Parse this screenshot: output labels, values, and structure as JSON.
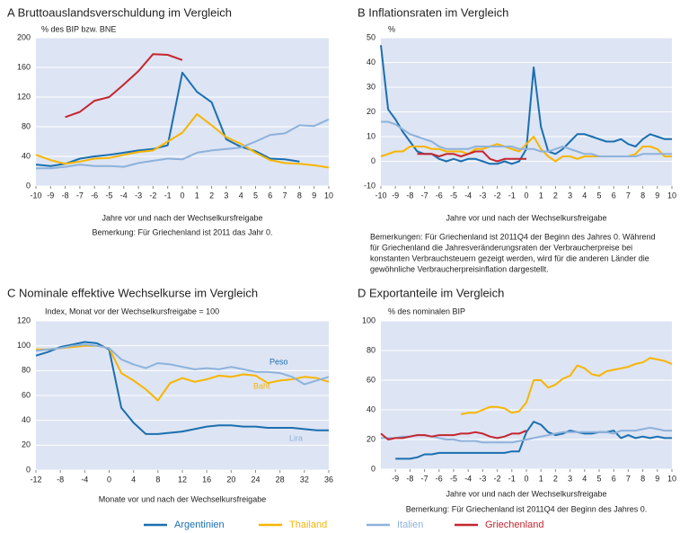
{
  "chart_data": [
    {
      "type": "line",
      "title": "A  Bruttoauslandsverschuldung im Vergleich",
      "subtitle": "% des BIP bzw. BNE",
      "x_label": "Jahre vor und nach der Wechselkursfreigabe",
      "note": "Bemerkung: Für Griechenland ist 2011 das Jahr 0.",
      "x": [
        -10,
        -9,
        -8,
        -7,
        -6,
        -5,
        -4,
        -3,
        -2,
        -1,
        0,
        1,
        2,
        3,
        4,
        5,
        6,
        7,
        8,
        9,
        10
      ],
      "xlim": [
        -10,
        10
      ],
      "xticks": [
        -10,
        -9,
        -8,
        -7,
        -6,
        -5,
        -4,
        -3,
        -2,
        -1,
        0,
        1,
        2,
        3,
        4,
        5,
        6,
        7,
        8,
        9,
        10
      ],
      "ylim": [
        0,
        200
      ],
      "yticks": [
        0,
        40,
        80,
        120,
        160,
        200
      ],
      "grid": true,
      "series": [
        {
          "name": "Argentinien",
          "color": "#1a6fb0",
          "values": [
            29,
            27,
            30,
            37,
            40,
            42,
            45,
            48,
            50,
            55,
            153,
            127,
            113,
            63,
            53,
            47,
            37,
            36,
            33,
            null,
            null
          ]
        },
        {
          "name": "Thailand",
          "color": "#f7b500",
          "values": [
            42,
            35,
            30,
            33,
            37,
            38,
            42,
            46,
            48,
            60,
            72,
            97,
            82,
            66,
            57,
            45,
            35,
            31,
            30,
            28,
            25
          ]
        },
        {
          "name": "Italien",
          "color": "#8db2db",
          "values": [
            24,
            24,
            26,
            29,
            27,
            27,
            26,
            31,
            34,
            37,
            36,
            45,
            48,
            50,
            52,
            60,
            69,
            71,
            82,
            81,
            90
          ]
        },
        {
          "name": "Griechenland",
          "color": "#c4262e",
          "values": [
            null,
            null,
            93,
            100,
            115,
            120,
            137,
            155,
            178,
            177,
            170,
            null,
            null,
            null,
            null,
            null,
            null,
            null,
            null,
            null,
            null
          ]
        }
      ]
    },
    {
      "type": "line",
      "title": "B  Inflationsraten im Vergleich",
      "subtitle": "%",
      "x_label": "Jahre vor und nach der Wechselkursfreigabe",
      "note": [
        "Bemerkungen: Für Griechenland ist 2011Q4 der Beginn des Jahres 0. Während",
        "für Griechenland die Jahresveränderungsraten der Verbraucherpreise bei",
        "konstanten Verbrauchsteuern gezeigt werden, wird für die anderen Länder die",
        "gewöhnliche Verbraucherpreisinflation dargestellt."
      ],
      "x": [
        -10,
        -9.5,
        -9,
        -8.5,
        -8,
        -7.5,
        -7,
        -6.5,
        -6,
        -5.5,
        -5,
        -4.5,
        -4,
        -3.5,
        -3,
        -2.5,
        -2,
        -1.5,
        -1,
        -0.5,
        0,
        0.5,
        1,
        1.5,
        2,
        2.5,
        3,
        3.5,
        4,
        4.5,
        5,
        5.5,
        6,
        6.5,
        7,
        7.5,
        8,
        8.5,
        9,
        9.5,
        10
      ],
      "xlim": [
        -10,
        10
      ],
      "xticks": [
        -10,
        -9,
        -8,
        -7,
        -6,
        -5,
        -4,
        -3,
        -2,
        -1,
        0,
        1,
        2,
        3,
        4,
        5,
        6,
        7,
        8,
        9,
        10
      ],
      "ylim": [
        -10,
        50
      ],
      "yticks": [
        -10,
        0,
        10,
        20,
        30,
        40,
        50
      ],
      "grid": true,
      "series": [
        {
          "color": "#1a6fb0",
          "values": [
            47,
            21,
            17,
            12,
            8,
            4,
            3,
            3,
            1,
            0,
            1,
            0,
            1,
            1,
            0,
            -1,
            -1,
            0,
            -1,
            0,
            5,
            38,
            14,
            4,
            3,
            5,
            8,
            11,
            11,
            10,
            9,
            8,
            8,
            9,
            7,
            6,
            9,
            11,
            10,
            9,
            9
          ]
        },
        {
          "color": "#f7b500",
          "values": [
            2,
            3,
            4,
            4,
            6,
            6,
            6,
            5,
            5,
            4,
            4,
            4,
            3,
            5,
            5,
            6,
            7,
            6,
            5,
            4,
            7,
            10,
            5,
            2,
            0,
            2,
            2,
            1,
            2,
            2,
            2,
            2,
            2,
            2,
            2,
            3,
            6,
            6,
            5,
            2,
            2
          ]
        },
        {
          "color": "#8db2db",
          "values": [
            16,
            16,
            15,
            13,
            11,
            10,
            9,
            8,
            6,
            5,
            5,
            5,
            5,
            6,
            6,
            6,
            6,
            6,
            6,
            5,
            5,
            5,
            4,
            4,
            5,
            6,
            5,
            4,
            3,
            3,
            2,
            2,
            2,
            2,
            2,
            2,
            3,
            3,
            3,
            3,
            3
          ]
        },
        {
          "color": "#c4262e",
          "values": [
            null,
            null,
            null,
            null,
            null,
            3,
            3,
            3,
            2,
            3,
            3,
            2,
            3,
            4,
            4,
            1,
            0,
            1,
            1,
            1,
            1,
            null,
            null,
            null,
            null,
            null,
            null,
            null,
            null,
            null,
            null,
            null,
            null,
            null,
            null,
            null,
            null,
            null,
            null,
            null,
            null
          ]
        }
      ]
    },
    {
      "type": "line",
      "title": "C  Nominale effektive Wechselkurse im Vergleich",
      "subtitle": "Index, Monat vor der Wechselkursfreigabe = 100",
      "x_label": "Monate vor und nach der Wechselkursfreigabe",
      "x": [
        -12,
        -10,
        -8,
        -6,
        -4,
        -2,
        0,
        2,
        4,
        6,
        8,
        10,
        12,
        14,
        16,
        18,
        20,
        22,
        24,
        26,
        28,
        30,
        32,
        34,
        36
      ],
      "xlim": [
        -12,
        36
      ],
      "xticks": [
        -12,
        -8,
        -4,
        0,
        4,
        8,
        12,
        16,
        20,
        24,
        28,
        32,
        36
      ],
      "ylim": [
        0,
        120
      ],
      "yticks": [
        0,
        20,
        40,
        60,
        80,
        100,
        120
      ],
      "grid": true,
      "series": [
        {
          "name": "Peso",
          "color": "#1a6fb0",
          "values": [
            92,
            95,
            99,
            101,
            103,
            102,
            97,
            50,
            38,
            29,
            29,
            30,
            31,
            33,
            35,
            36,
            36,
            35,
            35,
            34,
            34,
            34,
            33,
            32,
            32
          ]
        },
        {
          "name": "Baht",
          "color": "#f7b500",
          "values": [
            97,
            97,
            98,
            99,
            100,
            100,
            98,
            78,
            72,
            65,
            56,
            70,
            74,
            71,
            73,
            76,
            75,
            77,
            76,
            70,
            72,
            73,
            75,
            74,
            71
          ]
        },
        {
          "name": "Lira",
          "color": "#8db2db",
          "values": [
            96,
            97,
            98,
            100,
            101,
            100,
            98,
            89,
            85,
            82,
            86,
            85,
            83,
            81,
            82,
            81,
            83,
            81,
            79,
            79,
            78,
            75,
            69,
            72,
            75
          ]
        }
      ]
    },
    {
      "type": "line",
      "title": "D  Exportanteile im Vergleich",
      "subtitle": "% des nominalen BIP",
      "x_label": "Jahre vor und nach der Wechselkursfreigabe",
      "note": "Bemerkung: Für Griechenland ist 2011Q4 der Beginn des Jahres 0.",
      "x": [
        -10,
        -9.5,
        -9,
        -8.5,
        -8,
        -7.5,
        -7,
        -6.5,
        -6,
        -5.5,
        -5,
        -4.5,
        -4,
        -3.5,
        -3,
        -2.5,
        -2,
        -1.5,
        -1,
        -0.5,
        0,
        0.5,
        1,
        1.5,
        2,
        2.5,
        3,
        3.5,
        4,
        4.5,
        5,
        5.5,
        6,
        6.5,
        7,
        7.5,
        8,
        8.5,
        9,
        9.5,
        10
      ],
      "xlim": [
        -10,
        10
      ],
      "xticks": [
        -9,
        -8,
        -7,
        -6,
        -5,
        -4,
        -3,
        -2,
        -1,
        0,
        1,
        2,
        3,
        4,
        5,
        6,
        7,
        8,
        9,
        10
      ],
      "ylim": [
        0,
        100
      ],
      "yticks": [
        0,
        20,
        40,
        60,
        80,
        100
      ],
      "grid": true,
      "series": [
        {
          "color": "#1a6fb0",
          "values": [
            null,
            null,
            7,
            7,
            7,
            8,
            10,
            10,
            11,
            11,
            11,
            11,
            11,
            11,
            11,
            11,
            11,
            11,
            12,
            12,
            25,
            32,
            30,
            25,
            23,
            24,
            26,
            25,
            24,
            24,
            25,
            25,
            26,
            21,
            23,
            21,
            22,
            21,
            22,
            21,
            21
          ]
        },
        {
          "color": "#f7b500",
          "values": [
            null,
            null,
            null,
            null,
            null,
            null,
            null,
            null,
            null,
            null,
            null,
            37,
            38,
            38,
            40,
            42,
            42,
            41,
            38,
            39,
            45,
            60,
            60,
            55,
            57,
            61,
            63,
            70,
            68,
            64,
            63,
            66,
            67,
            68,
            69,
            71,
            72,
            75,
            74,
            73,
            71
          ]
        },
        {
          "color": "#8db2db",
          "values": [
            21,
            21,
            21,
            22,
            22,
            23,
            23,
            22,
            21,
            20,
            20,
            19,
            19,
            19,
            18,
            18,
            18,
            18,
            18,
            19,
            20,
            21,
            22,
            23,
            24,
            25,
            25,
            25,
            25,
            25,
            25,
            25,
            24,
            26,
            26,
            26,
            27,
            28,
            27,
            26,
            26
          ]
        },
        {
          "color": "#c4262e",
          "values": [
            24,
            20,
            21,
            21,
            22,
            23,
            23,
            22,
            23,
            23,
            23,
            24,
            24,
            25,
            24,
            22,
            21,
            22,
            24,
            24,
            26,
            null,
            null,
            null,
            null,
            null,
            null,
            null,
            null,
            null,
            null,
            null,
            null,
            null,
            null,
            null,
            null,
            null,
            null,
            null,
            null
          ]
        }
      ]
    }
  ]
}
